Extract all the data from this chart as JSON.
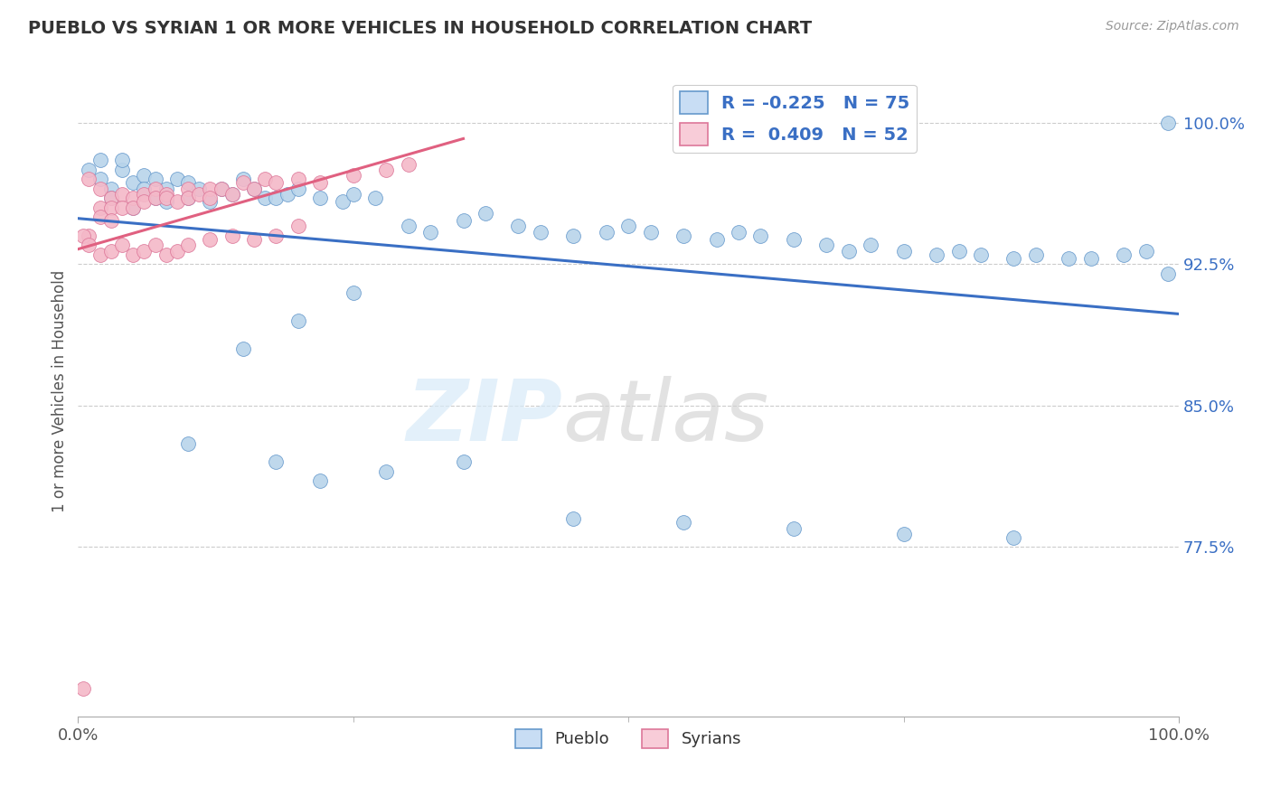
{
  "title": "PUEBLO VS SYRIAN 1 OR MORE VEHICLES IN HOUSEHOLD CORRELATION CHART",
  "source": "Source: ZipAtlas.com",
  "ylabel": "1 or more Vehicles in Household",
  "xlim": [
    0.0,
    1.0
  ],
  "ylim": [
    0.685,
    1.03
  ],
  "yticks": [
    0.775,
    0.85,
    0.925,
    1.0
  ],
  "ytick_labels": [
    "77.5%",
    "85.0%",
    "92.5%",
    "100.0%"
  ],
  "xtick_labels": [
    "0.0%",
    "100.0%"
  ],
  "pueblo_color": "#b8d4ea",
  "syrians_color": "#f4b8c8",
  "pueblo_edge_color": "#6699cc",
  "syrians_edge_color": "#dd7799",
  "pueblo_line_color": "#3a6fc4",
  "syrians_line_color": "#e06080",
  "legend_box_color_pueblo": "#c8ddf4",
  "legend_box_color_syrians": "#f8ccd8",
  "R_pueblo": -0.225,
  "N_pueblo": 75,
  "R_syrians": 0.409,
  "N_syrians": 52,
  "pueblo_x": [
    0.01,
    0.02,
    0.02,
    0.03,
    0.03,
    0.04,
    0.04,
    0.05,
    0.05,
    0.06,
    0.06,
    0.07,
    0.07,
    0.08,
    0.08,
    0.09,
    0.1,
    0.1,
    0.11,
    0.12,
    0.13,
    0.14,
    0.15,
    0.16,
    0.17,
    0.18,
    0.19,
    0.2,
    0.22,
    0.24,
    0.25,
    0.27,
    0.3,
    0.32,
    0.35,
    0.37,
    0.4,
    0.42,
    0.45,
    0.48,
    0.5,
    0.52,
    0.55,
    0.58,
    0.6,
    0.62,
    0.65,
    0.68,
    0.7,
    0.72,
    0.75,
    0.78,
    0.8,
    0.82,
    0.85,
    0.87,
    0.9,
    0.92,
    0.95,
    0.97,
    0.99,
    0.99,
    0.25,
    0.2,
    0.15,
    0.1,
    0.35,
    0.22,
    0.18,
    0.28,
    0.45,
    0.55,
    0.65,
    0.75,
    0.85
  ],
  "pueblo_y": [
    0.975,
    0.97,
    0.98,
    0.965,
    0.96,
    0.975,
    0.98,
    0.968,
    0.955,
    0.972,
    0.965,
    0.97,
    0.96,
    0.965,
    0.958,
    0.97,
    0.968,
    0.96,
    0.965,
    0.958,
    0.965,
    0.962,
    0.97,
    0.965,
    0.96,
    0.96,
    0.962,
    0.965,
    0.96,
    0.958,
    0.962,
    0.96,
    0.945,
    0.942,
    0.948,
    0.952,
    0.945,
    0.942,
    0.94,
    0.942,
    0.945,
    0.942,
    0.94,
    0.938,
    0.942,
    0.94,
    0.938,
    0.935,
    0.932,
    0.935,
    0.932,
    0.93,
    0.932,
    0.93,
    0.928,
    0.93,
    0.928,
    0.928,
    0.93,
    0.932,
    1.0,
    0.92,
    0.91,
    0.895,
    0.88,
    0.83,
    0.82,
    0.81,
    0.82,
    0.815,
    0.79,
    0.788,
    0.785,
    0.782,
    0.78
  ],
  "syrians_x": [
    0.005,
    0.01,
    0.01,
    0.02,
    0.02,
    0.02,
    0.03,
    0.03,
    0.03,
    0.04,
    0.04,
    0.05,
    0.05,
    0.06,
    0.06,
    0.07,
    0.07,
    0.08,
    0.08,
    0.09,
    0.1,
    0.1,
    0.11,
    0.12,
    0.12,
    0.13,
    0.14,
    0.15,
    0.16,
    0.17,
    0.18,
    0.2,
    0.22,
    0.25,
    0.28,
    0.3,
    0.005,
    0.01,
    0.02,
    0.03,
    0.04,
    0.05,
    0.06,
    0.07,
    0.08,
    0.09,
    0.1,
    0.12,
    0.14,
    0.16,
    0.18,
    0.2
  ],
  "syrians_y": [
    0.7,
    0.97,
    0.94,
    0.955,
    0.965,
    0.95,
    0.96,
    0.955,
    0.948,
    0.962,
    0.955,
    0.96,
    0.955,
    0.962,
    0.958,
    0.965,
    0.96,
    0.962,
    0.96,
    0.958,
    0.965,
    0.96,
    0.962,
    0.965,
    0.96,
    0.965,
    0.962,
    0.968,
    0.965,
    0.97,
    0.968,
    0.97,
    0.968,
    0.972,
    0.975,
    0.978,
    0.94,
    0.935,
    0.93,
    0.932,
    0.935,
    0.93,
    0.932,
    0.935,
    0.93,
    0.932,
    0.935,
    0.938,
    0.94,
    0.938,
    0.94,
    0.945
  ]
}
